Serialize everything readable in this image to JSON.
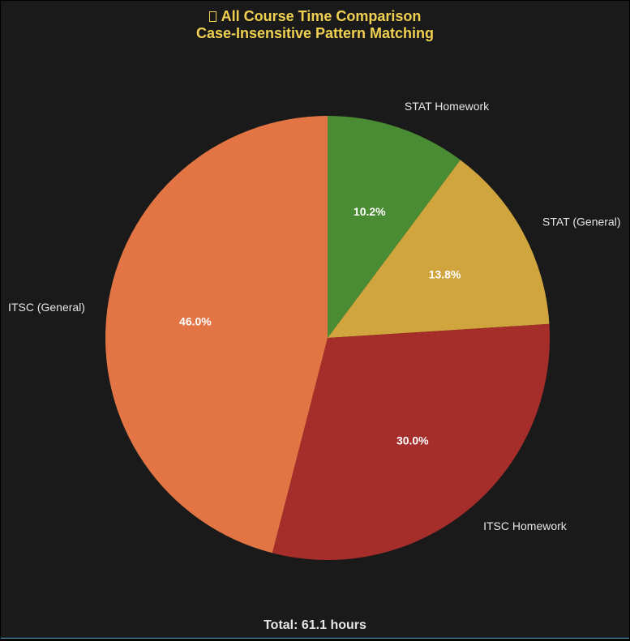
{
  "chart_data": {
    "type": "pie",
    "title": "All Course Time Comparison",
    "subtitle": "Case-Insensitive Pattern Matching",
    "title_icon": "missing-glyph-box",
    "slices": [
      {
        "label": "STAT Homework",
        "percent": 10.2,
        "percent_label": "10.2%",
        "color": "#4a8c33"
      },
      {
        "label": "STAT (General)",
        "percent": 13.8,
        "percent_label": "13.8%",
        "color": "#d1a53e"
      },
      {
        "label": "ITSC Homework",
        "percent": 30.0,
        "percent_label": "30.0%",
        "color": "#a52d2a"
      },
      {
        "label": "ITSC (General)",
        "percent": 46.0,
        "percent_label": "46.0%",
        "color": "#e37544"
      }
    ],
    "start_angle": "top",
    "direction": "clockwise",
    "footer": "Total: 61.1 hours"
  },
  "colors": {
    "background": "#1a1a1a",
    "title": "#f0d050",
    "text": "#e6e6e6"
  }
}
